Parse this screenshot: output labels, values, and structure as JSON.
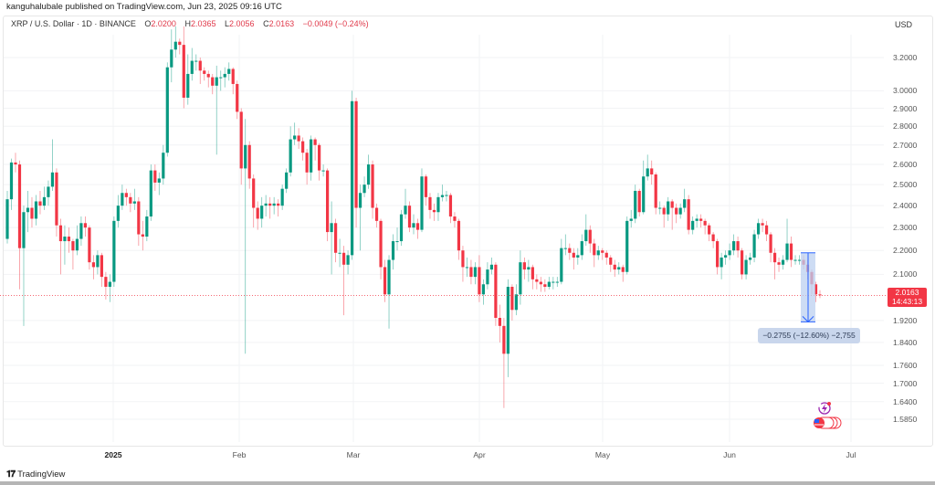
{
  "publisher_line": "kanguhalubale published on TradingView.com, Jun 23, 2025 09:16 UTC",
  "legend": {
    "symbol": "XRP / U.S. Dollar · 1D · BINANCE",
    "open_label": "O",
    "open": "2.0200",
    "high_label": "H",
    "high": "2.0365",
    "low_label": "L",
    "low": "2.0056",
    "close_label": "C",
    "close": "2.0163",
    "change": "−0.0049 (−0.24%)"
  },
  "currency": "USD",
  "price_label": {
    "price": "2.0163",
    "countdown": "14:43:13"
  },
  "measure": {
    "label": "−0.2755 (−12.60%) −2,755",
    "from_price": 2.19,
    "to_price": 1.915
  },
  "footer": {
    "logo": "TV",
    "brand": "TradingView"
  },
  "colors": {
    "up": "#089981",
    "down": "#f23645",
    "measure_fill": "#bcd0f0",
    "measure_line": "#2962ff",
    "price_line": "#f23645"
  },
  "chart_data": {
    "type": "candlestick",
    "scale": "log",
    "grid": true,
    "ylim": [
      1.56,
      3.45
    ],
    "y_ticks": [
      "3.2000",
      "3.0000",
      "2.9000",
      "2.8000",
      "2.7000",
      "2.6000",
      "2.5000",
      "2.4000",
      "2.3000",
      "2.2000",
      "2.1000",
      "1.9200",
      "1.8400",
      "1.7600",
      "1.7000",
      "1.6400",
      "1.5850"
    ],
    "x_ticks": [
      "2025",
      "Feb",
      "Mar",
      "Apr",
      "May",
      "Jun",
      "Jul"
    ],
    "x_range": [
      "2024-12-07",
      "2025-06-23"
    ],
    "candles_ohlc": [
      [
        2.25,
        2.47,
        2.23,
        2.43
      ],
      [
        2.43,
        2.63,
        2.38,
        2.61
      ],
      [
        2.61,
        2.66,
        2.56,
        2.6
      ],
      [
        2.6,
        2.62,
        2.04,
        2.21
      ],
      [
        2.21,
        2.4,
        1.9,
        2.37
      ],
      [
        2.37,
        2.47,
        2.28,
        2.39
      ],
      [
        2.39,
        2.44,
        2.3,
        2.34
      ],
      [
        2.34,
        2.45,
        2.31,
        2.42
      ],
      [
        2.42,
        2.47,
        2.36,
        2.4
      ],
      [
        2.4,
        2.49,
        2.38,
        2.44
      ],
      [
        2.44,
        2.52,
        2.4,
        2.49
      ],
      [
        2.49,
        2.73,
        2.47,
        2.56
      ],
      [
        2.56,
        2.58,
        2.26,
        2.31
      ],
      [
        2.31,
        2.34,
        2.1,
        2.24
      ],
      [
        2.24,
        2.31,
        2.14,
        2.26
      ],
      [
        2.26,
        2.3,
        2.19,
        2.24
      ],
      [
        2.24,
        2.25,
        2.12,
        2.2
      ],
      [
        2.2,
        2.31,
        2.18,
        2.25
      ],
      [
        2.25,
        2.35,
        2.22,
        2.32
      ],
      [
        2.32,
        2.35,
        2.26,
        2.3
      ],
      [
        2.3,
        2.31,
        2.12,
        2.15
      ],
      [
        2.15,
        2.18,
        2.08,
        2.13
      ],
      [
        2.13,
        2.2,
        2.1,
        2.18
      ],
      [
        2.18,
        2.19,
        2.05,
        2.09
      ],
      [
        2.09,
        2.11,
        2.0,
        2.05
      ],
      [
        2.05,
        2.1,
        1.99,
        2.07
      ],
      [
        2.07,
        2.35,
        2.05,
        2.33
      ],
      [
        2.33,
        2.45,
        2.3,
        2.4
      ],
      [
        2.4,
        2.5,
        2.38,
        2.46
      ],
      [
        2.46,
        2.48,
        2.4,
        2.44
      ],
      [
        2.44,
        2.46,
        2.37,
        2.41
      ],
      [
        2.41,
        2.48,
        2.38,
        2.42
      ],
      [
        2.42,
        2.44,
        2.22,
        2.27
      ],
      [
        2.27,
        2.33,
        2.2,
        2.26
      ],
      [
        2.26,
        2.38,
        2.24,
        2.35
      ],
      [
        2.35,
        2.6,
        2.33,
        2.57
      ],
      [
        2.57,
        2.6,
        2.47,
        2.51
      ],
      [
        2.51,
        2.56,
        2.45,
        2.53
      ],
      [
        2.53,
        2.7,
        2.5,
        2.66
      ],
      [
        2.66,
        3.17,
        2.64,
        3.14
      ],
      [
        3.14,
        3.38,
        3.05,
        3.25
      ],
      [
        3.25,
        3.4,
        3.2,
        3.3
      ],
      [
        3.3,
        3.32,
        3.22,
        3.28
      ],
      [
        3.28,
        3.4,
        2.9,
        2.96
      ],
      [
        2.96,
        3.22,
        2.92,
        3.1
      ],
      [
        3.1,
        3.26,
        3.06,
        3.18
      ],
      [
        3.18,
        3.22,
        3.12,
        3.18
      ],
      [
        3.18,
        3.2,
        3.04,
        3.12
      ],
      [
        3.12,
        3.14,
        3.06,
        3.1
      ],
      [
        3.1,
        3.12,
        3.02,
        3.08
      ],
      [
        3.08,
        3.1,
        2.98,
        3.03
      ],
      [
        3.03,
        3.15,
        2.65,
        3.08
      ],
      [
        3.08,
        3.12,
        3.0,
        3.08
      ],
      [
        3.08,
        3.14,
        3.02,
        3.1
      ],
      [
        3.1,
        3.17,
        3.06,
        3.13
      ],
      [
        3.13,
        3.14,
        2.98,
        3.04
      ],
      [
        3.04,
        3.06,
        2.84,
        2.88
      ],
      [
        2.88,
        2.9,
        2.5,
        2.58
      ],
      [
        2.58,
        2.84,
        1.8,
        2.7
      ],
      [
        2.7,
        2.72,
        2.48,
        2.53
      ],
      [
        2.53,
        2.55,
        2.3,
        2.39
      ],
      [
        2.39,
        2.42,
        2.29,
        2.34
      ],
      [
        2.34,
        2.44,
        2.3,
        2.4
      ],
      [
        2.4,
        2.45,
        2.35,
        2.41
      ],
      [
        2.41,
        2.44,
        2.34,
        2.4
      ],
      [
        2.4,
        2.44,
        2.36,
        2.41
      ],
      [
        2.41,
        2.43,
        2.35,
        2.4
      ],
      [
        2.4,
        2.5,
        2.38,
        2.48
      ],
      [
        2.48,
        2.58,
        2.46,
        2.56
      ],
      [
        2.56,
        2.8,
        2.54,
        2.73
      ],
      [
        2.73,
        2.82,
        2.7,
        2.75
      ],
      [
        2.75,
        2.79,
        2.68,
        2.72
      ],
      [
        2.72,
        2.74,
        2.62,
        2.66
      ],
      [
        2.66,
        2.68,
        2.5,
        2.56
      ],
      [
        2.56,
        2.75,
        2.52,
        2.73
      ],
      [
        2.73,
        2.74,
        2.62,
        2.7
      ],
      [
        2.7,
        2.71,
        2.52,
        2.57
      ],
      [
        2.57,
        2.6,
        2.54,
        2.57
      ],
      [
        2.57,
        2.58,
        2.24,
        2.28
      ],
      [
        2.28,
        2.42,
        2.1,
        2.32
      ],
      [
        2.32,
        2.34,
        2.15,
        2.19
      ],
      [
        2.19,
        2.25,
        2.13,
        2.19
      ],
      [
        2.19,
        2.22,
        1.94,
        2.14
      ],
      [
        2.14,
        2.2,
        2.1,
        2.18
      ],
      [
        2.18,
        3.0,
        2.16,
        2.94
      ],
      [
        2.94,
        2.96,
        2.3,
        2.39
      ],
      [
        2.39,
        2.5,
        2.2,
        2.46
      ],
      [
        2.46,
        2.54,
        2.44,
        2.5
      ],
      [
        2.5,
        2.65,
        2.48,
        2.6
      ],
      [
        2.6,
        2.62,
        2.34,
        2.39
      ],
      [
        2.39,
        2.41,
        2.3,
        2.33
      ],
      [
        2.33,
        2.34,
        2.08,
        2.13
      ],
      [
        2.13,
        2.16,
        1.99,
        2.02
      ],
      [
        2.02,
        2.18,
        1.89,
        2.16
      ],
      [
        2.16,
        2.27,
        2.12,
        2.24
      ],
      [
        2.24,
        2.3,
        2.2,
        2.24
      ],
      [
        2.24,
        2.38,
        2.22,
        2.36
      ],
      [
        2.36,
        2.48,
        2.34,
        2.4
      ],
      [
        2.4,
        2.42,
        2.28,
        2.3
      ],
      [
        2.3,
        2.36,
        2.27,
        2.32
      ],
      [
        2.32,
        2.34,
        2.25,
        2.29
      ],
      [
        2.29,
        2.58,
        2.28,
        2.54
      ],
      [
        2.54,
        2.55,
        2.4,
        2.44
      ],
      [
        2.44,
        2.46,
        2.34,
        2.38
      ],
      [
        2.38,
        2.41,
        2.33,
        2.37
      ],
      [
        2.37,
        2.46,
        2.33,
        2.44
      ],
      [
        2.44,
        2.5,
        2.42,
        2.45
      ],
      [
        2.45,
        2.47,
        2.42,
        2.45
      ],
      [
        2.45,
        2.46,
        2.32,
        2.35
      ],
      [
        2.35,
        2.37,
        2.3,
        2.33
      ],
      [
        2.33,
        2.34,
        2.16,
        2.2
      ],
      [
        2.2,
        2.22,
        2.07,
        2.13
      ],
      [
        2.13,
        2.17,
        2.09,
        2.13
      ],
      [
        2.13,
        2.16,
        2.06,
        2.09
      ],
      [
        2.09,
        2.15,
        2.06,
        2.13
      ],
      [
        2.13,
        2.18,
        1.99,
        2.02
      ],
      [
        2.02,
        2.08,
        1.98,
        2.06
      ],
      [
        2.06,
        2.15,
        2.04,
        2.12
      ],
      [
        2.12,
        2.17,
        2.1,
        2.14
      ],
      [
        2.14,
        2.15,
        1.9,
        1.93
      ],
      [
        1.93,
        1.98,
        1.84,
        1.9
      ],
      [
        1.9,
        1.93,
        1.62,
        1.8
      ],
      [
        1.8,
        2.08,
        1.72,
        2.05
      ],
      [
        2.05,
        2.06,
        1.92,
        1.96
      ],
      [
        1.96,
        2.06,
        1.94,
        2.02
      ],
      [
        2.02,
        2.2,
        1.98,
        2.15
      ],
      [
        2.15,
        2.17,
        2.08,
        2.12
      ],
      [
        2.12,
        2.16,
        2.07,
        2.13
      ],
      [
        2.13,
        2.14,
        2.04,
        2.08
      ],
      [
        2.08,
        2.1,
        2.04,
        2.07
      ],
      [
        2.07,
        2.09,
        2.03,
        2.06
      ],
      [
        2.06,
        2.08,
        2.03,
        2.05
      ],
      [
        2.05,
        2.09,
        2.04,
        2.07
      ],
      [
        2.07,
        2.09,
        2.04,
        2.07
      ],
      [
        2.07,
        2.09,
        2.05,
        2.07
      ],
      [
        2.07,
        2.25,
        2.06,
        2.21
      ],
      [
        2.21,
        2.27,
        2.18,
        2.21
      ],
      [
        2.21,
        2.23,
        2.16,
        2.19
      ],
      [
        2.19,
        2.21,
        2.12,
        2.17
      ],
      [
        2.17,
        2.21,
        2.14,
        2.18
      ],
      [
        2.18,
        2.27,
        2.16,
        2.24
      ],
      [
        2.24,
        2.36,
        2.22,
        2.29
      ],
      [
        2.29,
        2.31,
        2.19,
        2.23
      ],
      [
        2.23,
        2.25,
        2.13,
        2.18
      ],
      [
        2.18,
        2.22,
        2.16,
        2.2
      ],
      [
        2.2,
        2.21,
        2.16,
        2.19
      ],
      [
        2.19,
        2.2,
        2.14,
        2.17
      ],
      [
        2.17,
        2.18,
        2.11,
        2.14
      ],
      [
        2.14,
        2.16,
        2.09,
        2.12
      ],
      [
        2.12,
        2.15,
        2.1,
        2.13
      ],
      [
        2.13,
        2.14,
        2.07,
        2.11
      ],
      [
        2.11,
        2.35,
        2.1,
        2.33
      ],
      [
        2.33,
        2.38,
        2.3,
        2.34
      ],
      [
        2.34,
        2.5,
        2.32,
        2.47
      ],
      [
        2.47,
        2.48,
        2.35,
        2.37
      ],
      [
        2.37,
        2.62,
        2.36,
        2.54
      ],
      [
        2.54,
        2.65,
        2.52,
        2.58
      ],
      [
        2.58,
        2.62,
        2.5,
        2.55
      ],
      [
        2.55,
        2.56,
        2.36,
        2.39
      ],
      [
        2.39,
        2.42,
        2.36,
        2.39
      ],
      [
        2.39,
        2.4,
        2.3,
        2.36
      ],
      [
        2.36,
        2.44,
        2.33,
        2.42
      ],
      [
        2.42,
        2.43,
        2.29,
        2.39
      ],
      [
        2.39,
        2.41,
        2.32,
        2.36
      ],
      [
        2.36,
        2.41,
        2.34,
        2.39
      ],
      [
        2.39,
        2.48,
        2.37,
        2.43
      ],
      [
        2.43,
        2.45,
        2.27,
        2.29
      ],
      [
        2.29,
        2.35,
        2.27,
        2.33
      ],
      [
        2.33,
        2.36,
        2.3,
        2.34
      ],
      [
        2.34,
        2.36,
        2.3,
        2.33
      ],
      [
        2.33,
        2.34,
        2.27,
        2.31
      ],
      [
        2.31,
        2.32,
        2.24,
        2.27
      ],
      [
        2.27,
        2.28,
        2.21,
        2.24
      ],
      [
        2.24,
        2.25,
        2.1,
        2.13
      ],
      [
        2.13,
        2.19,
        2.08,
        2.17
      ],
      [
        2.17,
        2.2,
        2.14,
        2.18
      ],
      [
        2.18,
        2.23,
        2.16,
        2.2
      ],
      [
        2.2,
        2.27,
        2.18,
        2.24
      ],
      [
        2.24,
        2.26,
        2.17,
        2.2
      ],
      [
        2.2,
        2.21,
        2.08,
        2.1
      ],
      [
        2.1,
        2.18,
        2.08,
        2.16
      ],
      [
        2.16,
        2.19,
        2.14,
        2.17
      ],
      [
        2.17,
        2.29,
        2.15,
        2.27
      ],
      [
        2.27,
        2.34,
        2.25,
        2.32
      ],
      [
        2.32,
        2.34,
        2.28,
        2.31
      ],
      [
        2.31,
        2.33,
        2.24,
        2.27
      ],
      [
        2.27,
        2.28,
        2.15,
        2.19
      ],
      [
        2.19,
        2.21,
        2.08,
        2.15
      ],
      [
        2.15,
        2.17,
        2.11,
        2.14
      ],
      [
        2.14,
        2.18,
        2.12,
        2.16
      ],
      [
        2.16,
        2.34,
        2.15,
        2.23
      ],
      [
        2.23,
        2.26,
        2.13,
        2.16
      ],
      [
        2.16,
        2.18,
        2.14,
        2.16
      ],
      [
        2.16,
        2.18,
        2.14,
        2.16
      ],
      [
        2.16,
        2.18,
        2.12,
        2.14
      ],
      [
        2.14,
        2.16,
        2.08,
        2.11
      ],
      [
        2.11,
        2.12,
        2.02,
        2.06
      ],
      [
        2.06,
        2.07,
        1.99,
        2.02
      ],
      [
        2.02,
        2.0365,
        2.0056,
        2.0163
      ]
    ]
  }
}
